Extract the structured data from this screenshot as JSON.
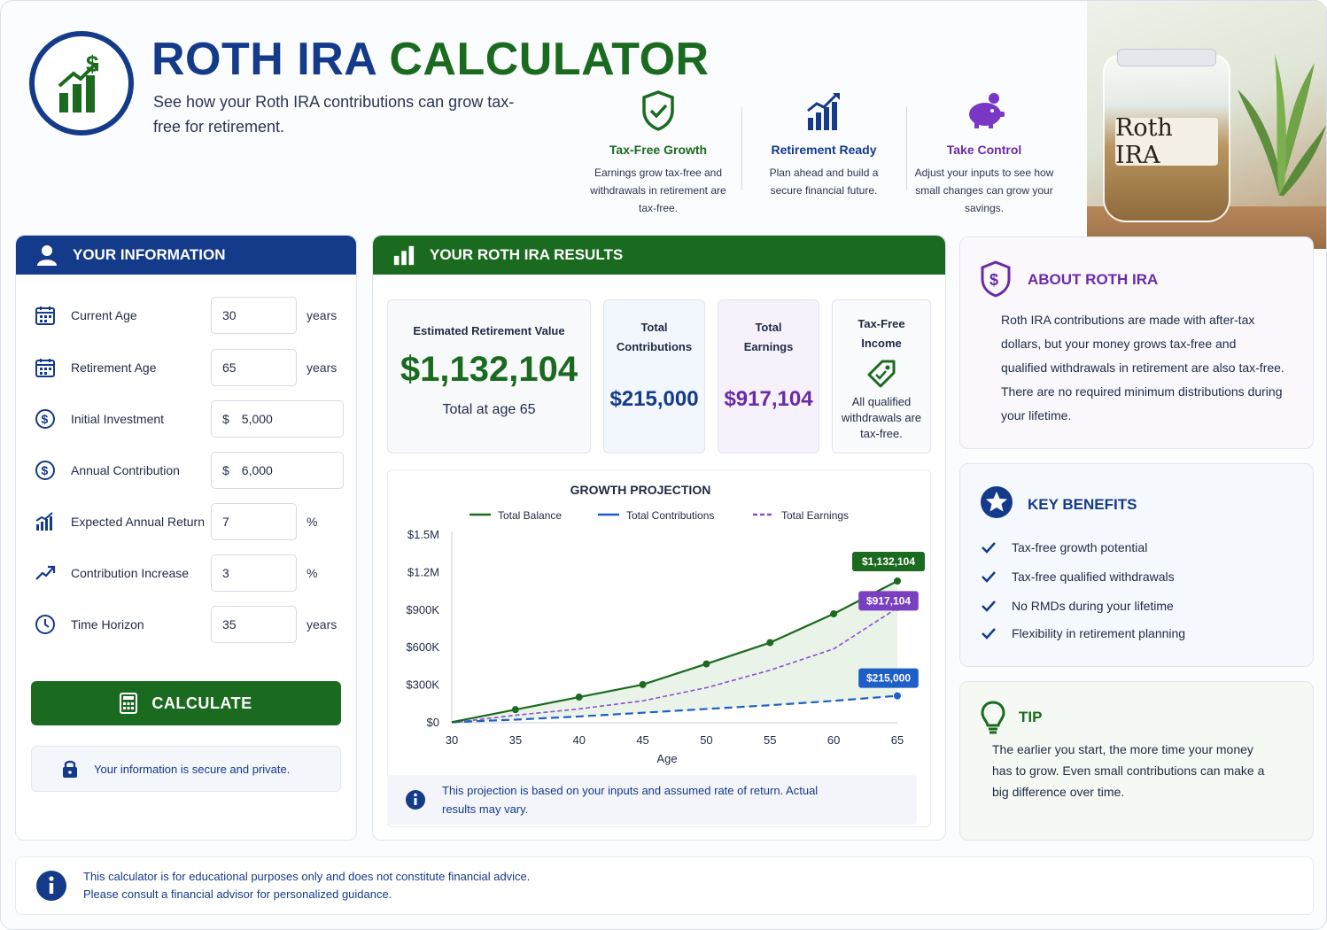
{
  "header": {
    "title_part1": "ROTH IRA",
    "title_part2": "CALCULATOR",
    "subtitle": "See how your Roth IRA contributions can grow tax-free for retirement."
  },
  "features": [
    {
      "name": "Tax-Free Growth",
      "desc": "Earnings grow tax-free and withdrawals in retirement are tax-free.",
      "icon": "shield-check-icon",
      "color": "#1a6b1f"
    },
    {
      "name": "Retirement Ready",
      "desc": "Plan ahead and build a secure financial future.",
      "icon": "growth-bars-icon",
      "color": "#143a8a"
    },
    {
      "name": "Take Control",
      "desc": "Adjust your inputs to see how small changes can grow your savings.",
      "icon": "piggy-bank-icon",
      "color": "#6a2aa8"
    }
  ],
  "jar_label": "Roth IRA",
  "info_panel": {
    "title": "YOUR INFORMATION",
    "fields": [
      {
        "label": "Current Age",
        "value": "30",
        "unit": "years",
        "currency": ""
      },
      {
        "label": "Retirement Age",
        "value": "65",
        "unit": "years",
        "currency": ""
      },
      {
        "label": "Initial Investment",
        "value": "5,000",
        "unit": "",
        "currency": "$"
      },
      {
        "label": "Annual Contribution",
        "value": "6,000",
        "unit": "",
        "currency": "$"
      },
      {
        "label": "Expected Annual Return",
        "value": "7",
        "unit": "%",
        "currency": ""
      },
      {
        "label": "Contribution Increase",
        "value": "3",
        "unit": "%",
        "currency": ""
      },
      {
        "label": "Time Horizon",
        "value": "35",
        "unit": "years",
        "currency": ""
      }
    ],
    "calculate_label": "CALCULATE",
    "secure_text": "Your information is secure and private."
  },
  "results": {
    "title": "YOUR ROTH IRA RESULTS",
    "estimated_label": "Estimated Retirement Value",
    "estimated_value": "$1,132,104",
    "estimated_sub": "Total at age 65",
    "contrib_label_1": "Total",
    "contrib_label_2": "Contributions",
    "contrib_value": "$215,000",
    "earnings_label_1": "Total",
    "earnings_label_2": "Earnings",
    "earnings_value": "$917,104",
    "taxfree_label_1": "Tax-Free",
    "taxfree_label_2": "Income",
    "taxfree_desc": "All qualified withdrawals are tax-free.",
    "note": "This projection is based on your inputs and assumed rate of return. Actual results may vary."
  },
  "chart_data": {
    "type": "line",
    "title": "GROWTH PROJECTION",
    "xlabel": "Age",
    "ylabel": "",
    "x": [
      30,
      35,
      40,
      45,
      50,
      55,
      60,
      65
    ],
    "xlim": [
      30,
      65
    ],
    "ylim": [
      0,
      1500000
    ],
    "y_ticks": [
      0,
      300000,
      600000,
      900000,
      1200000,
      1500000
    ],
    "y_tick_labels": [
      "$0",
      "$300K",
      "$600K",
      "$900K",
      "$1.2M",
      "$1.5M"
    ],
    "legend_position": "top",
    "series": [
      {
        "name": "Total Balance",
        "values": [
          5000,
          105000,
          205000,
          305000,
          470000,
          640000,
          870000,
          1132104
        ],
        "color": "#1a6b1f",
        "style": "solid"
      },
      {
        "name": "Total Contributions",
        "values": [
          5000,
          25000,
          50000,
          80000,
          110000,
          140000,
          175000,
          215000
        ],
        "color": "#1d5fc7",
        "style": "dashed"
      },
      {
        "name": "Total Earnings",
        "values": [
          0,
          60000,
          110000,
          175000,
          280000,
          420000,
          590000,
          917104
        ],
        "color": "#8a4fd0",
        "style": "dashed"
      }
    ],
    "end_labels": [
      "$1,132,104",
      "$917,104",
      "$215,000"
    ]
  },
  "about": {
    "title": "ABOUT ROTH IRA",
    "text": "Roth IRA contributions are made with after-tax dollars, but your money grows tax-free and qualified withdrawals in retirement are also tax-free. There are no required minimum distributions during your lifetime."
  },
  "benefits": {
    "title": "KEY BENEFITS",
    "items": [
      "Tax-free growth potential",
      "Tax-free qualified withdrawals",
      "No RMDs during your lifetime",
      "Flexibility in retirement planning"
    ]
  },
  "tip": {
    "title": "TIP",
    "text": "The earlier you start, the more time your money has to grow. Even small contributions can make a big difference over time."
  },
  "footer": {
    "line1": "This calculator is for educational purposes only and does not constitute financial advice.",
    "line2": "Please consult a financial advisor for personalized guidance."
  },
  "colors": {
    "navy": "#143a8a",
    "green": "#1a6b1f",
    "purple": "#6a2aa8",
    "blue": "#1d5fc7"
  }
}
